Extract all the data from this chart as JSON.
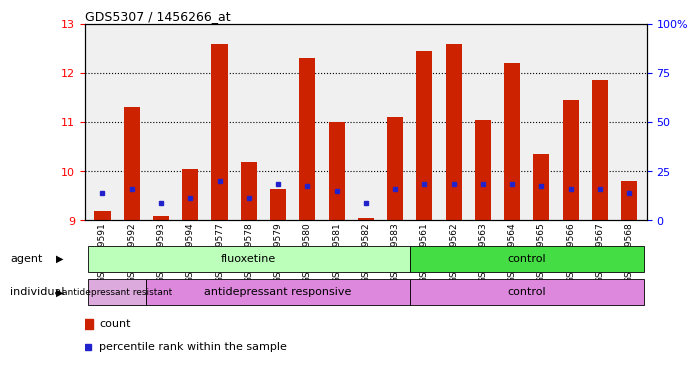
{
  "title": "GDS5307 / 1456266_at",
  "samples": [
    "GSM1059591",
    "GSM1059592",
    "GSM1059593",
    "GSM1059594",
    "GSM1059577",
    "GSM1059578",
    "GSM1059579",
    "GSM1059580",
    "GSM1059581",
    "GSM1059582",
    "GSM1059583",
    "GSM1059561",
    "GSM1059562",
    "GSM1059563",
    "GSM1059564",
    "GSM1059565",
    "GSM1059566",
    "GSM1059567",
    "GSM1059568"
  ],
  "count_values": [
    9.2,
    11.3,
    9.1,
    10.05,
    12.6,
    10.2,
    9.65,
    12.3,
    11.0,
    9.05,
    11.1,
    12.45,
    12.6,
    11.05,
    12.2,
    10.35,
    11.45,
    11.85,
    9.8
  ],
  "percentile_values": [
    9.55,
    9.65,
    9.35,
    9.45,
    9.8,
    9.45,
    9.75,
    9.7,
    9.6,
    9.35,
    9.65,
    9.75,
    9.75,
    9.75,
    9.75,
    9.7,
    9.65,
    9.65,
    9.55
  ],
  "ylim_left": [
    9,
    13
  ],
  "ylim_right": [
    0,
    100
  ],
  "yticks_left": [
    9,
    10,
    11,
    12,
    13
  ],
  "yticks_right": [
    0,
    25,
    50,
    75,
    100
  ],
  "bar_color": "#CC2200",
  "percentile_color": "#2222CC",
  "plot_bg_color": "#F0F0F0",
  "agent_fluoxetine_color": "#BBFFBB",
  "agent_control_color": "#44DD44",
  "indiv_resistant_color": "#DDAADD",
  "indiv_responsive_color": "#DD88DD",
  "indiv_control_color": "#DD88DD",
  "agent_groups": [
    {
      "label": "fluoxetine",
      "start": 0,
      "end": 10
    },
    {
      "label": "control",
      "start": 11,
      "end": 18
    }
  ],
  "individual_groups": [
    {
      "label": "antidepressant resistant",
      "start": 0,
      "end": 1
    },
    {
      "label": "antidepressant responsive",
      "start": 2,
      "end": 10
    },
    {
      "label": "control",
      "start": 11,
      "end": 18
    }
  ]
}
